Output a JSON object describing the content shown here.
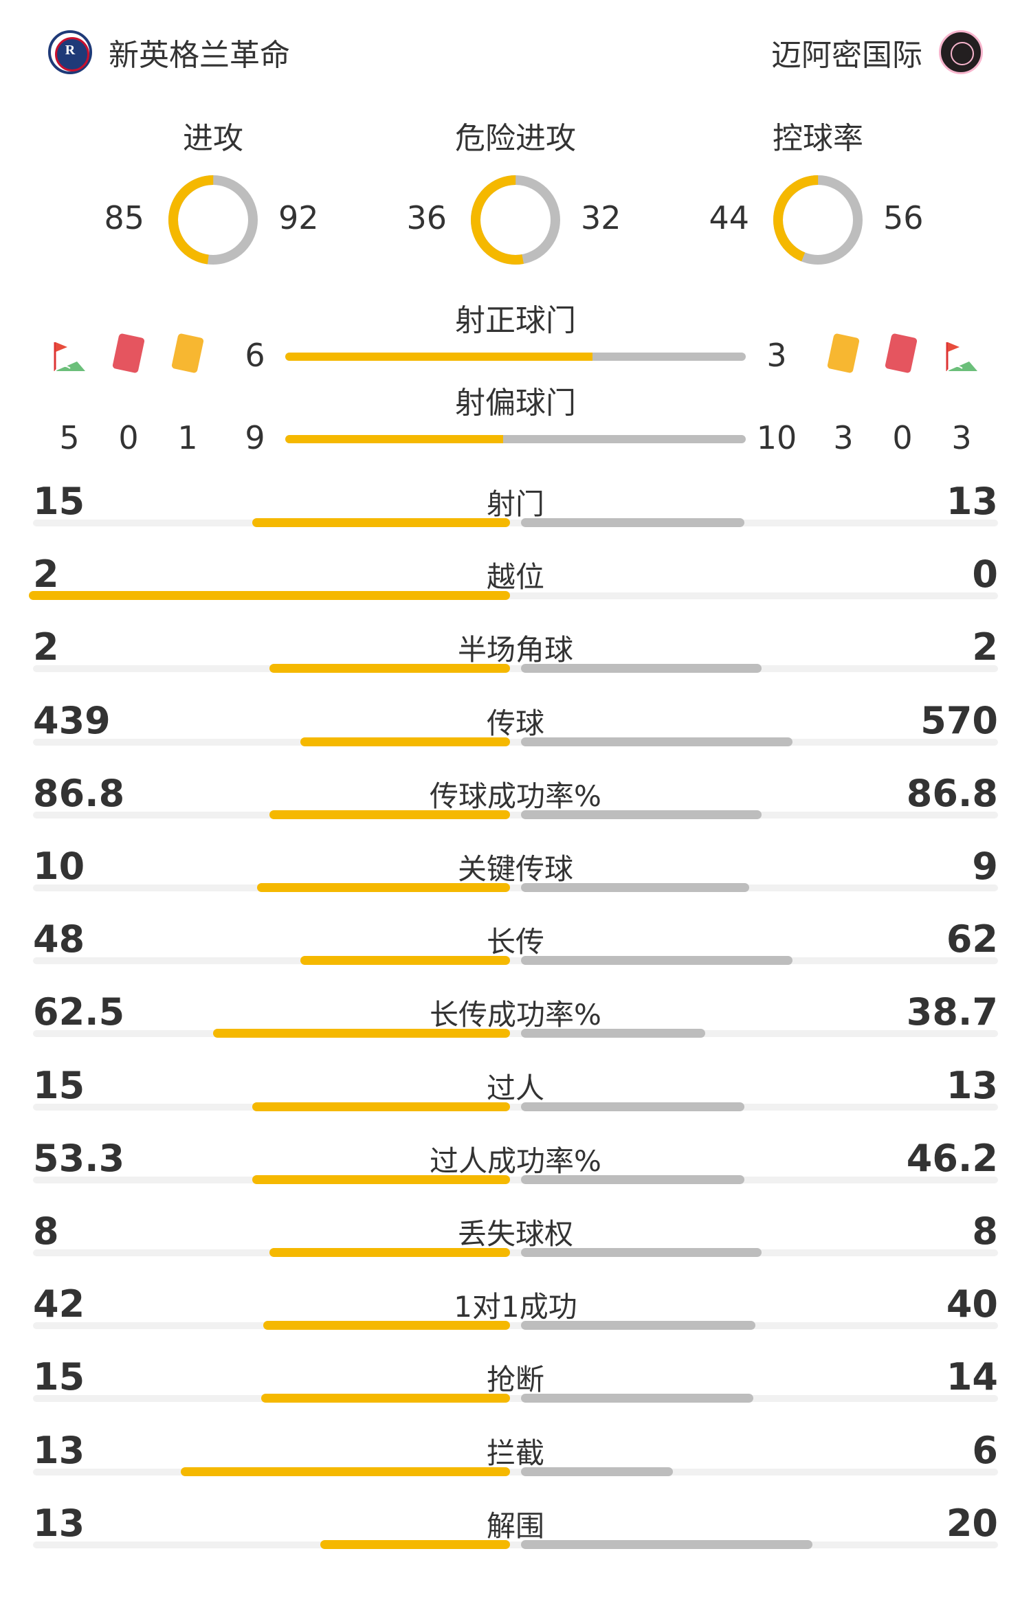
{
  "teams": {
    "home": {
      "name": "新英格兰革命",
      "logo_icon": "new-england-revolution-crest",
      "logo_text": "R"
    },
    "away": {
      "name": "迈阿密国际",
      "logo_icon": "inter-miami-crest"
    }
  },
  "colors": {
    "home": "#f5b800",
    "away": "#bdbdbd",
    "text": "#333333"
  },
  "donuts": [
    {
      "key": "attack",
      "label": "进攻",
      "home": "85",
      "away": "92"
    },
    {
      "key": "dangerous",
      "label": "危险进攻",
      "home": "36",
      "away": "32"
    },
    {
      "key": "possession",
      "label": "控球率",
      "home": "44",
      "away": "56"
    }
  ],
  "shots_on": {
    "label": "射正球门",
    "home": "6",
    "away": "3"
  },
  "shots_off": {
    "label": "射偏球门",
    "home": "9",
    "away": "10"
  },
  "discipline": {
    "home": {
      "corners": "5",
      "red_cards": "0",
      "yellow_cards": "1"
    },
    "away": {
      "yellow_cards": "3",
      "red_cards": "0",
      "corners": "3"
    }
  },
  "stats": [
    {
      "label": "射门",
      "home": "15",
      "away": "13"
    },
    {
      "label": "越位",
      "home": "2",
      "away": "0"
    },
    {
      "label": "半场角球",
      "home": "2",
      "away": "2"
    },
    {
      "label": "传球",
      "home": "439",
      "away": "570"
    },
    {
      "label": "传球成功率%",
      "home": "86.8",
      "away": "86.8"
    },
    {
      "label": "关键传球",
      "home": "10",
      "away": "9"
    },
    {
      "label": "长传",
      "home": "48",
      "away": "62"
    },
    {
      "label": "长传成功率%",
      "home": "62.5",
      "away": "38.7"
    },
    {
      "label": "过人",
      "home": "15",
      "away": "13"
    },
    {
      "label": "过人成功率%",
      "home": "53.3",
      "away": "46.2"
    },
    {
      "label": "丢失球权",
      "home": "8",
      "away": "8"
    },
    {
      "label": "1对1成功",
      "home": "42",
      "away": "40"
    },
    {
      "label": "抢断",
      "home": "15",
      "away": "14"
    },
    {
      "label": "拦截",
      "home": "13",
      "away": "6"
    },
    {
      "label": "解围",
      "home": "13",
      "away": "20"
    }
  ]
}
